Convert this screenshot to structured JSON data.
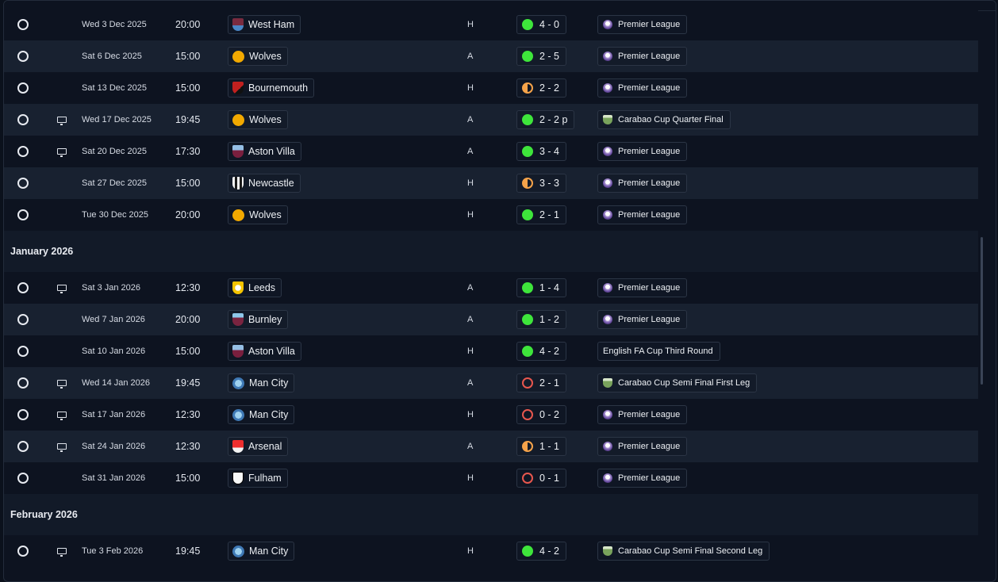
{
  "colors": {
    "win": "#3ee53b",
    "draw": "#f5a34a",
    "loss": "#e8574e"
  },
  "months": {
    "january": "January 2026",
    "february": "February 2026"
  },
  "fixtures_december": [
    {
      "date": "Wed 3 Dec 2025",
      "time": "20:00",
      "team": "West Ham",
      "crest": "west-ham-crest-icon",
      "venue": "H",
      "score": "4 - 0",
      "result": "win",
      "competition": "Premier League",
      "comp_icon": "premier-league-icon",
      "tv": false
    },
    {
      "date": "Sat 6 Dec 2025",
      "time": "15:00",
      "team": "Wolves",
      "crest": "wolves-crest-icon",
      "venue": "A",
      "score": "2 - 5",
      "result": "win",
      "competition": "Premier League",
      "comp_icon": "premier-league-icon",
      "tv": false
    },
    {
      "date": "Sat 13 Dec 2025",
      "time": "15:00",
      "team": "Bournemouth",
      "crest": "bournemouth-crest-icon",
      "venue": "H",
      "score": "2 - 2",
      "result": "draw",
      "competition": "Premier League",
      "comp_icon": "premier-league-icon",
      "tv": false
    },
    {
      "date": "Wed 17 Dec 2025",
      "time": "19:45",
      "team": "Wolves",
      "crest": "wolves-crest-icon",
      "venue": "A",
      "score": "2 - 2 p",
      "result": "win",
      "competition": "Carabao Cup Quarter Final",
      "comp_icon": "carabao-cup-icon",
      "tv": true
    },
    {
      "date": "Sat 20 Dec 2025",
      "time": "17:30",
      "team": "Aston Villa",
      "crest": "aston-villa-crest-icon",
      "venue": "A",
      "score": "3 - 4",
      "result": "win",
      "competition": "Premier League",
      "comp_icon": "premier-league-icon",
      "tv": true
    },
    {
      "date": "Sat 27 Dec 2025",
      "time": "15:00",
      "team": "Newcastle",
      "crest": "newcastle-crest-icon",
      "venue": "H",
      "score": "3 - 3",
      "result": "draw",
      "competition": "Premier League",
      "comp_icon": "premier-league-icon",
      "tv": false
    },
    {
      "date": "Tue 30 Dec 2025",
      "time": "20:00",
      "team": "Wolves",
      "crest": "wolves-crest-icon",
      "venue": "H",
      "score": "2 - 1",
      "result": "win",
      "competition": "Premier League",
      "comp_icon": "premier-league-icon",
      "tv": false
    }
  ],
  "fixtures_january": [
    {
      "date": "Sat 3 Jan 2026",
      "time": "12:30",
      "team": "Leeds",
      "crest": "leeds-crest-icon",
      "venue": "A",
      "score": "1 - 4",
      "result": "win",
      "competition": "Premier League",
      "comp_icon": "premier-league-icon",
      "tv": true
    },
    {
      "date": "Wed 7 Jan 2026",
      "time": "20:00",
      "team": "Burnley",
      "crest": "burnley-crest-icon",
      "venue": "A",
      "score": "1 - 2",
      "result": "win",
      "competition": "Premier League",
      "comp_icon": "premier-league-icon",
      "tv": false
    },
    {
      "date": "Sat 10 Jan 2026",
      "time": "15:00",
      "team": "Aston Villa",
      "crest": "aston-villa-crest-icon",
      "venue": "H",
      "score": "4 - 2",
      "result": "win",
      "competition": "English FA Cup Third Round",
      "comp_icon": "",
      "tv": false
    },
    {
      "date": "Wed 14 Jan 2026",
      "time": "19:45",
      "team": "Man City",
      "crest": "man-city-crest-icon",
      "venue": "A",
      "score": "2 - 1",
      "result": "loss",
      "competition": "Carabao Cup Semi Final First Leg",
      "comp_icon": "carabao-cup-icon",
      "tv": true
    },
    {
      "date": "Sat 17 Jan 2026",
      "time": "12:30",
      "team": "Man City",
      "crest": "man-city-crest-icon",
      "venue": "H",
      "score": "0 - 2",
      "result": "loss",
      "competition": "Premier League",
      "comp_icon": "premier-league-icon",
      "tv": true
    },
    {
      "date": "Sat 24 Jan 2026",
      "time": "12:30",
      "team": "Arsenal",
      "crest": "arsenal-crest-icon",
      "venue": "A",
      "score": "1 - 1",
      "result": "draw",
      "competition": "Premier League",
      "comp_icon": "premier-league-icon",
      "tv": true
    },
    {
      "date": "Sat 31 Jan 2026",
      "time": "15:00",
      "team": "Fulham",
      "crest": "fulham-crest-icon",
      "venue": "H",
      "score": "0 - 1",
      "result": "loss",
      "competition": "Premier League",
      "comp_icon": "premier-league-icon",
      "tv": false
    }
  ],
  "fixtures_february": [
    {
      "date": "Tue 3 Feb 2026",
      "time": "19:45",
      "team": "Man City",
      "crest": "man-city-crest-icon",
      "venue": "H",
      "score": "4 - 2",
      "result": "win",
      "competition": "Carabao Cup Semi Final Second Leg",
      "comp_icon": "carabao-cup-icon",
      "tv": true
    }
  ]
}
